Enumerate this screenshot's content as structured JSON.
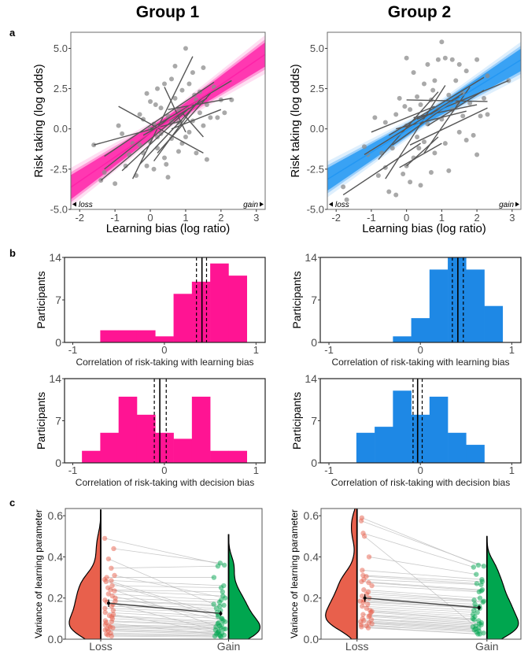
{
  "headers": {
    "group1": "Group 1",
    "group2": "Group 2"
  },
  "panel_labels": {
    "a": "a",
    "b": "b",
    "c": "c"
  },
  "chart_data": [
    {
      "id": "a-group1",
      "type": "scatter",
      "group": "Group 1",
      "xlabel": "Learning bias (log ratio)",
      "ylabel": "Risk taking (log odds)",
      "xlim": [
        -2.25,
        3.25
      ],
      "ylim": [
        -5,
        6
      ],
      "xticks": [
        "-2",
        "-1",
        "0",
        "1",
        "2",
        "3"
      ],
      "xtick_values": [
        -2,
        -1,
        0,
        1,
        2,
        3
      ],
      "yticks": [
        "-5.0",
        "-2.5",
        "0.0",
        "2.5",
        "5.0"
      ],
      "ytick_values": [
        -5,
        -2.5,
        0,
        2.5,
        5
      ],
      "annotations": {
        "loss": "loss",
        "gain": "gain"
      },
      "color": "#ff1fa8",
      "point_color": "#8c8c8c",
      "line_color": "#555555",
      "regression": {
        "slope": 1.5,
        "intercept": -0.25,
        "band_halfwidth_center": 0.3,
        "band_halfwidth_edge": 0.75
      },
      "points": [
        [
          -1.6,
          -1
        ],
        [
          -1.4,
          -3.2
        ],
        [
          -1.3,
          -2.7
        ],
        [
          -1,
          -3.4
        ],
        [
          -0.8,
          -0.3
        ],
        [
          -0.7,
          -2.3
        ],
        [
          -0.6,
          -1.6
        ],
        [
          -0.5,
          -0.9
        ],
        [
          -0.4,
          -2.9
        ],
        [
          -0.3,
          0.9
        ],
        [
          -0.2,
          -1.5
        ],
        [
          -0.2,
          0.6
        ],
        [
          -0.1,
          -2.3
        ],
        [
          0,
          1.7
        ],
        [
          0,
          -0.8
        ],
        [
          0.1,
          0.3
        ],
        [
          0.1,
          -2.5
        ],
        [
          0.2,
          2.5
        ],
        [
          0.2,
          -1.2
        ],
        [
          0.3,
          1.3
        ],
        [
          0.3,
          -0.3
        ],
        [
          0.4,
          2.8
        ],
        [
          0.4,
          -1.8
        ],
        [
          0.5,
          0.8
        ],
        [
          0.5,
          -3
        ],
        [
          0.6,
          3.1
        ],
        [
          0.6,
          -0.6
        ],
        [
          0.7,
          1.9
        ],
        [
          0.7,
          3.9
        ],
        [
          0.8,
          -1.4
        ],
        [
          0.8,
          0.4
        ],
        [
          0.9,
          2.4
        ],
        [
          0.9,
          -0.9
        ],
        [
          1,
          1.2
        ],
        [
          1,
          5
        ],
        [
          1.1,
          -0.2
        ],
        [
          1.1,
          2.8
        ],
        [
          1.2,
          3.5
        ],
        [
          1.2,
          0.5
        ],
        [
          1.3,
          -1.5
        ],
        [
          1.3,
          1.8
        ],
        [
          1.4,
          2.3
        ],
        [
          1.5,
          0.2
        ],
        [
          1.5,
          3.8
        ],
        [
          1.6,
          -1.9
        ],
        [
          1.6,
          1.5
        ],
        [
          1.7,
          0.7
        ],
        [
          1.8,
          2.6
        ],
        [
          1.9,
          0.7
        ],
        [
          2,
          1.8
        ],
        [
          2.1,
          1
        ],
        [
          2.3,
          1.8
        ],
        [
          -0.9,
          0.2
        ],
        [
          0,
          0
        ],
        [
          0.2,
          -0.5
        ],
        [
          0.6,
          0.5
        ],
        [
          1,
          -0.5
        ],
        [
          -0.3,
          -1
        ],
        [
          0.8,
          1.2
        ],
        [
          1.4,
          1
        ],
        [
          -0.1,
          2.2
        ],
        [
          0.45,
          -2.2
        ],
        [
          1.25,
          2.1
        ],
        [
          0.15,
          1.5
        ]
      ],
      "participant_lines": [
        [
          -1.6,
          -1.0,
          0.9,
          0.5
        ],
        [
          -1.3,
          -1.7,
          1.8,
          2.9
        ],
        [
          -1.4,
          -3.2,
          0.9,
          1.0
        ],
        [
          -0.5,
          -3.1,
          1.2,
          4.5
        ],
        [
          -0.9,
          1.4,
          1.5,
          -1.5
        ],
        [
          -1.3,
          -2.5,
          0.6,
          0.8
        ],
        [
          0.4,
          2.6,
          1.0,
          -0.2
        ],
        [
          0.0,
          0.0,
          2.3,
          3.0
        ],
        [
          0.5,
          1.2,
          2.3,
          1.9
        ],
        [
          -0.3,
          -2.2,
          1.5,
          2.0
        ],
        [
          0.2,
          -1.5,
          1.7,
          2.2
        ],
        [
          0.6,
          0.0,
          2.0,
          1.2
        ],
        [
          -0.8,
          -2.6,
          1.1,
          1.3
        ],
        [
          0.9,
          1.0,
          1.5,
          -0.5
        ],
        [
          -0.2,
          -0.4,
          1.6,
          1.9
        ],
        [
          0.1,
          -2.0,
          1.3,
          1.6
        ]
      ]
    },
    {
      "id": "a-group2",
      "type": "scatter",
      "group": "Group 2",
      "xlabel": "Learning bias (log ratio)",
      "ylabel": "Risk taking (log odds)",
      "xlim": [
        -2.25,
        3.25
      ],
      "ylim": [
        -5,
        6
      ],
      "xticks": [
        "-2",
        "-1",
        "0",
        "1",
        "2",
        "3"
      ],
      "xtick_values": [
        -2,
        -1,
        0,
        1,
        2,
        3
      ],
      "yticks": [
        "-5.0",
        "-2.5",
        "0.0",
        "2.5",
        "5.0"
      ],
      "ytick_values": [
        -5,
        -2.5,
        0,
        2.5,
        5
      ],
      "annotations": {
        "loss": "loss",
        "gain": "gain"
      },
      "color": "#2196f3",
      "point_color": "#8c8c8c",
      "line_color": "#555555",
      "regression": {
        "slope": 1.35,
        "intercept": -0.1,
        "band_halfwidth_center": 0.3,
        "band_halfwidth_edge": 0.7
      },
      "points": [
        [
          -1.8,
          -3.6
        ],
        [
          -1.7,
          -4.4
        ],
        [
          -1.2,
          -1.1
        ],
        [
          -1.1,
          -1.6
        ],
        [
          -0.9,
          0.7
        ],
        [
          -0.8,
          -2.9
        ],
        [
          -0.7,
          -1.5
        ],
        [
          -0.6,
          -2.4
        ],
        [
          -0.5,
          -3.9
        ],
        [
          -0.4,
          -1.2
        ],
        [
          -0.3,
          0.9
        ],
        [
          -0.3,
          -4.1
        ],
        [
          -0.2,
          1.9
        ],
        [
          -0.1,
          -2.8
        ],
        [
          0,
          4.4
        ],
        [
          0,
          0.2
        ],
        [
          0,
          -2.3
        ],
        [
          0.1,
          1.2
        ],
        [
          0.1,
          -3.3
        ],
        [
          0.2,
          3.5
        ],
        [
          0.2,
          -1.8
        ],
        [
          0.3,
          2.0
        ],
        [
          0.3,
          -0.5
        ],
        [
          0.4,
          1.5
        ],
        [
          0.4,
          -3.5
        ],
        [
          0.5,
          2.8
        ],
        [
          0.5,
          -0.8
        ],
        [
          0.6,
          4.0
        ],
        [
          0.6,
          0.3
        ],
        [
          0.7,
          -2.7
        ],
        [
          0.7,
          1.8
        ],
        [
          0.8,
          -1.5
        ],
        [
          0.8,
          3.0
        ],
        [
          0.9,
          4.3
        ],
        [
          1.0,
          5.4
        ],
        [
          1.0,
          0.6
        ],
        [
          1.1,
          -0.9
        ],
        [
          1.1,
          4.4
        ],
        [
          1.2,
          2.1
        ],
        [
          1.2,
          -2.6
        ],
        [
          1.3,
          1.2
        ],
        [
          1.3,
          4.3
        ],
        [
          1.4,
          3.0
        ],
        [
          1.5,
          -0.2
        ],
        [
          1.5,
          4.0
        ],
        [
          1.6,
          2.2
        ],
        [
          1.6,
          0.8
        ],
        [
          1.7,
          -0.7
        ],
        [
          1.7,
          3.6
        ],
        [
          1.8,
          1.6
        ],
        [
          1.9,
          -0.4
        ],
        [
          2.0,
          4.3
        ],
        [
          2.0,
          -1.6
        ],
        [
          2.1,
          0.8
        ],
        [
          2.2,
          1.9
        ],
        [
          2.3,
          3.3
        ],
        [
          2.3,
          0.9
        ],
        [
          2.9,
          3.0
        ],
        [
          -0.6,
          0.4
        ],
        [
          0.9,
          1.2
        ],
        [
          0.35,
          -1.2
        ],
        [
          1.45,
          1.6
        ],
        [
          -0.05,
          1.4
        ],
        [
          0.75,
          2.4
        ]
      ],
      "participant_lines": [
        [
          -1.0,
          -0.2,
          0.8,
          1.4
        ],
        [
          -1.2,
          -1.6,
          1.6,
          2.2
        ],
        [
          -1.8,
          -4.1,
          0.4,
          -0.9
        ],
        [
          -0.6,
          -3.1,
          1.1,
          2.7
        ],
        [
          -0.2,
          -2.4,
          1.0,
          -0.9
        ],
        [
          0.0,
          1.8,
          2.3,
          1.7
        ],
        [
          0.3,
          0.6,
          2.9,
          3.0
        ],
        [
          -0.5,
          -0.4,
          2.2,
          3.2
        ],
        [
          0.1,
          -1.0,
          2.3,
          1.3
        ],
        [
          -0.3,
          0.0,
          1.7,
          1.1
        ],
        [
          0.5,
          -1.5,
          1.8,
          2.6
        ],
        [
          -0.8,
          -1.9,
          0.9,
          2.3
        ],
        [
          0.0,
          -2.3,
          0.9,
          -0.5
        ],
        [
          0.2,
          0.7,
          2.0,
          1.5
        ],
        [
          -0.4,
          -1.0,
          1.5,
          2.0
        ],
        [
          0.6,
          0.2,
          2.2,
          2.4
        ]
      ]
    },
    {
      "id": "b-group1-learning",
      "type": "bar",
      "group": "Group 1",
      "xlabel": "Correlation of risk-taking with learning bias",
      "ylabel": "Participants",
      "xlim": [
        -1.09,
        1.1
      ],
      "ylim": [
        0,
        14
      ],
      "xticks": [
        "-1",
        "0",
        "1"
      ],
      "xtick_values": [
        -1,
        0,
        1
      ],
      "yticks": [
        "0",
        "7",
        "14"
      ],
      "ytick_values": [
        0,
        7,
        14
      ],
      "color": "#ff1493",
      "bin_edges": [
        -0.7,
        -0.5,
        -0.3,
        -0.1,
        0.1,
        0.3,
        0.5,
        0.7,
        0.9
      ],
      "values": [
        2,
        2,
        2,
        1,
        8,
        10,
        13,
        11
      ],
      "mean": 0.41,
      "ci": [
        0.35,
        0.46
      ]
    },
    {
      "id": "b-group1-decision",
      "type": "bar",
      "group": "Group 1",
      "xlabel": "Correlation of risk-taking with decision bias",
      "ylabel": "Participants",
      "xlim": [
        -1.09,
        1.1
      ],
      "ylim": [
        0,
        14
      ],
      "xticks": [
        "-1",
        "0",
        "1"
      ],
      "xtick_values": [
        -1,
        0,
        1
      ],
      "yticks": [
        "0",
        "7",
        "14"
      ],
      "ytick_values": [
        0,
        7,
        14
      ],
      "color": "#ff1493",
      "bin_edges": [
        -0.9,
        -0.7,
        -0.5,
        -0.3,
        -0.1,
        0.1,
        0.3,
        0.5,
        0.7,
        0.9
      ],
      "values": [
        2,
        5,
        11,
        8,
        5,
        4,
        11,
        2,
        2
      ],
      "mean": -0.05,
      "ci": [
        -0.11,
        0.02
      ]
    },
    {
      "id": "b-group2-learning",
      "type": "bar",
      "group": "Group 2",
      "xlabel": "Correlation of risk-taking with learning bias",
      "ylabel": "Participants",
      "xlim": [
        -1.095,
        1.1
      ],
      "ylim": [
        0,
        14
      ],
      "xticks": [
        "-1",
        "0",
        "1"
      ],
      "xtick_values": [
        -1,
        0,
        1
      ],
      "yticks": [
        "0",
        "7",
        "14"
      ],
      "ytick_values": [
        0,
        7,
        14
      ],
      "color": "#1e88e5",
      "bin_edges": [
        -0.3,
        -0.1,
        0.1,
        0.3,
        0.5,
        0.7,
        0.9
      ],
      "values": [
        1,
        4,
        12,
        14,
        12,
        6
      ],
      "mean": 0.41,
      "ci": [
        0.35,
        0.47
      ]
    },
    {
      "id": "b-group2-decision",
      "type": "bar",
      "group": "Group 2",
      "xlabel": "Correlation of risk-taking with decision bias",
      "ylabel": "Participants",
      "xlim": [
        -1.095,
        1.1
      ],
      "ylim": [
        0,
        14
      ],
      "xticks": [
        "-1",
        "0",
        "1"
      ],
      "xtick_values": [
        -1,
        0,
        1
      ],
      "yticks": [
        "0",
        "7",
        "14"
      ],
      "ytick_values": [
        0,
        7,
        14
      ],
      "color": "#1e88e5",
      "bin_edges": [
        -0.7,
        -0.5,
        -0.3,
        -0.1,
        0.1,
        0.3,
        0.5,
        0.7
      ],
      "values": [
        5,
        6,
        12,
        8,
        11,
        5,
        3
      ],
      "mean": -0.03,
      "ci": [
        -0.08,
        0.02
      ]
    },
    {
      "id": "c-group1",
      "type": "violin",
      "group": "Group 1",
      "xlabel": "",
      "ylabel": "Variance of learning parameter",
      "categories": [
        "Loss",
        "Gain"
      ],
      "ylim": [
        0,
        0.635
      ],
      "yticks": [
        "0.0",
        "0.2",
        "0.4",
        "0.6"
      ],
      "ytick_values": [
        0,
        0.2,
        0.4,
        0.6
      ],
      "colors": {
        "loss": "#e8604c",
        "gain": "#00a64f"
      },
      "loss": [
        0.49,
        0.44,
        0.39,
        0.345,
        0.31,
        0.3,
        0.29,
        0.285,
        0.28,
        0.26,
        0.25,
        0.24,
        0.235,
        0.22,
        0.21,
        0.2,
        0.19,
        0.185,
        0.18,
        0.17,
        0.16,
        0.15,
        0.14,
        0.13,
        0.12,
        0.115,
        0.11,
        0.1,
        0.09,
        0.085,
        0.08,
        0.07,
        0.065,
        0.06,
        0.055,
        0.05,
        0.045,
        0.04,
        0.03,
        0.025,
        0.02,
        0.015
      ],
      "gain": [
        0.36,
        0.37,
        0.17,
        0.355,
        0.2,
        0.3,
        0.12,
        0.26,
        0.1,
        0.25,
        0.05,
        0.23,
        0.21,
        0.19,
        0.09,
        0.18,
        0.165,
        0.16,
        0.04,
        0.15,
        0.14,
        0.13,
        0.11,
        0.1,
        0.03,
        0.085,
        0.08,
        0.075,
        0.07,
        0.065,
        0.02,
        0.06,
        0.055,
        0.05,
        0.045,
        0.035,
        0.03,
        0.025,
        0.02,
        0.015,
        0.015,
        0.01
      ],
      "means": {
        "loss": 0.175,
        "gain": 0.125
      },
      "se": {
        "loss": 0.018,
        "gain": 0.012
      }
    },
    {
      "id": "c-group2",
      "type": "violin",
      "group": "Group 2",
      "xlabel": "",
      "ylabel": "Variance of learning parameter",
      "categories": [
        "Loss",
        "Gain"
      ],
      "ylim": [
        0,
        0.635
      ],
      "yticks": [
        "0.0",
        "0.2",
        "0.4",
        "0.6"
      ],
      "ytick_values": [
        0,
        0.2,
        0.4,
        0.6
      ],
      "colors": {
        "loss": "#e8604c",
        "gain": "#00a64f"
      },
      "loss": [
        0.59,
        0.575,
        0.515,
        0.5,
        0.4,
        0.335,
        0.31,
        0.305,
        0.29,
        0.28,
        0.275,
        0.26,
        0.24,
        0.23,
        0.22,
        0.21,
        0.2,
        0.19,
        0.185,
        0.18,
        0.17,
        0.16,
        0.15,
        0.14,
        0.135,
        0.13,
        0.12,
        0.115,
        0.11,
        0.1,
        0.095,
        0.09,
        0.085,
        0.08,
        0.075,
        0.07,
        0.065,
        0.06,
        0.055
      ],
      "gain": [
        0.36,
        0.355,
        0.35,
        0.03,
        0.315,
        0.29,
        0.28,
        0.27,
        0.265,
        0.24,
        0.235,
        0.23,
        0.2,
        0.19,
        0.185,
        0.18,
        0.17,
        0.16,
        0.155,
        0.15,
        0.14,
        0.13,
        0.12,
        0.11,
        0.1,
        0.095,
        0.09,
        0.08,
        0.075,
        0.07,
        0.065,
        0.06,
        0.055,
        0.05,
        0.045,
        0.04,
        0.035,
        0.025,
        0.025
      ],
      "means": {
        "loss": 0.2,
        "gain": 0.153
      },
      "se": {
        "loss": 0.018,
        "gain": 0.012
      }
    }
  ]
}
